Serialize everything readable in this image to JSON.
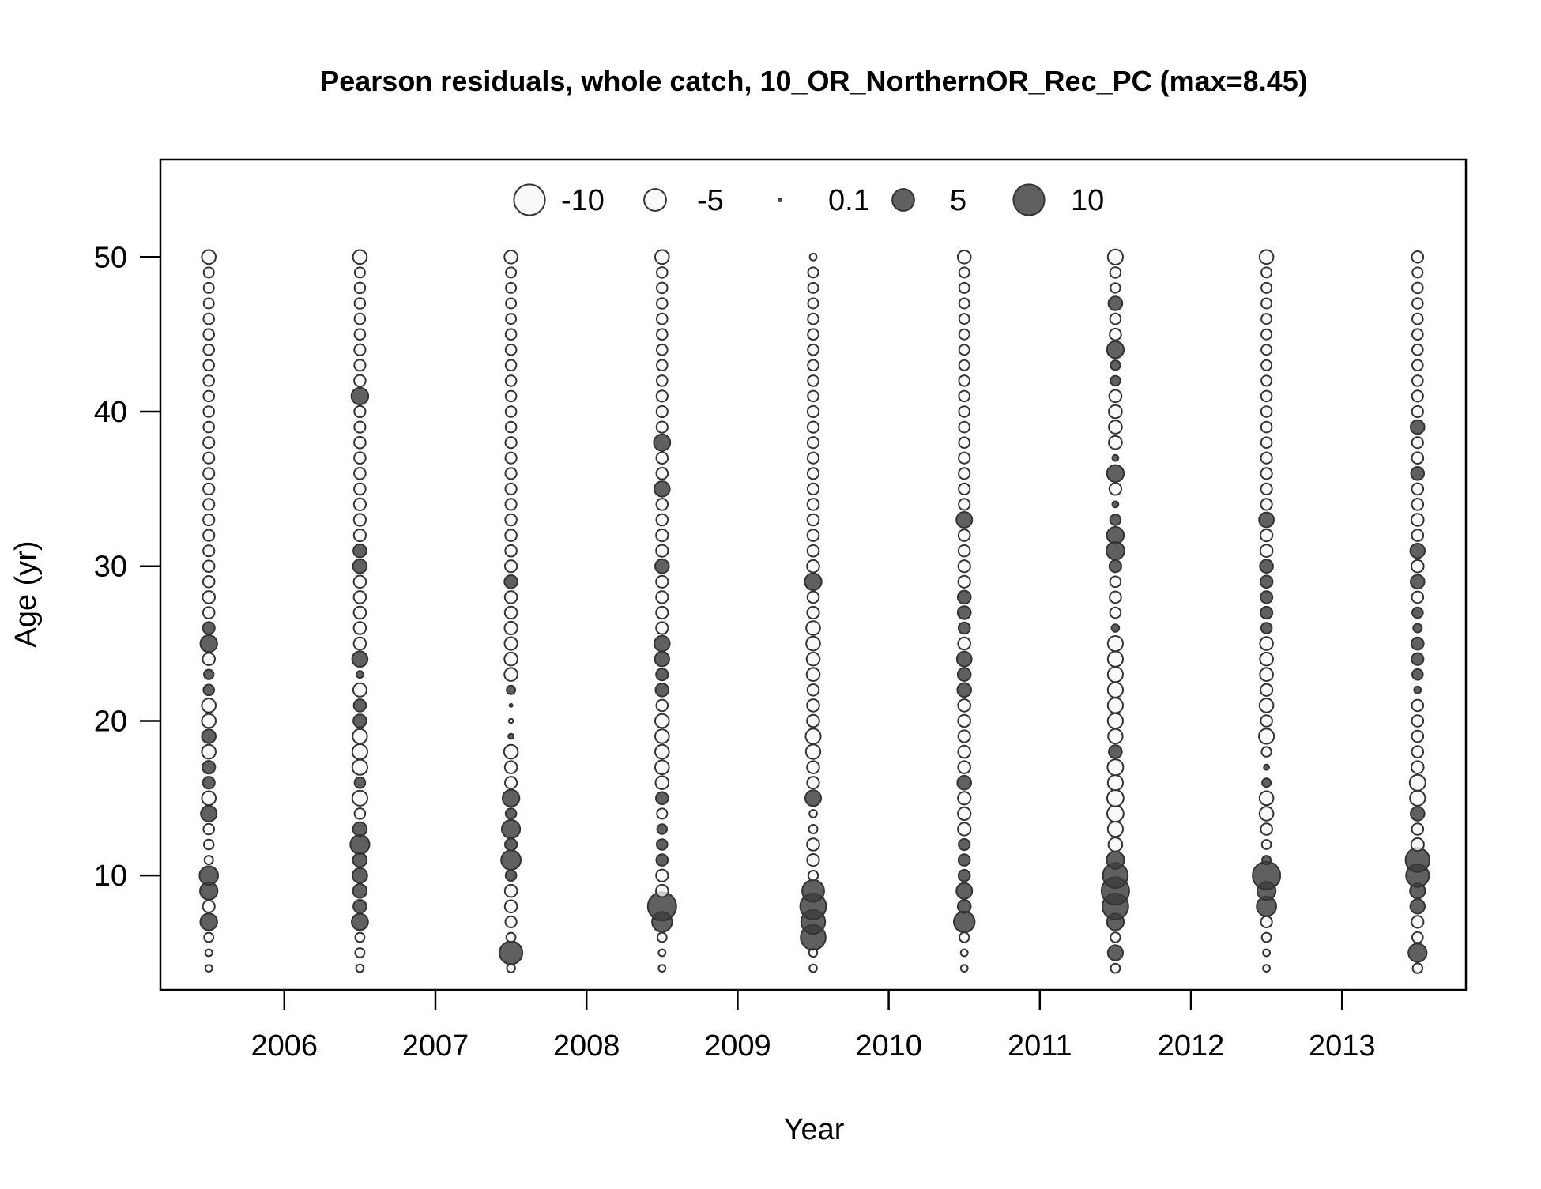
{
  "chart_data": {
    "type": "scatter",
    "subtype": "bubble",
    "title": "Pearson residuals, whole catch, 10_OR_NorthernOR_Rec_PC (max=8.45)",
    "xlabel": "Year",
    "ylabel": "Age (yr)",
    "xlim": [
      2005.18,
      2013.82
    ],
    "ylim": [
      2.6,
      56.3
    ],
    "x_ticks": [
      2006,
      2007,
      2008,
      2009,
      2010,
      2011,
      2012,
      2013
    ],
    "y_ticks": [
      10,
      20,
      30,
      40,
      50
    ],
    "grid": false,
    "legend_position": "top",
    "colors": {
      "positive": "#3d3d3d",
      "negative": "#f7f7f7",
      "outline": "#333333",
      "axis": "#000000"
    },
    "legend": [
      {
        "label": "-10",
        "value": -10
      },
      {
        "label": "-5",
        "value": -5
      },
      {
        "label": "0.1",
        "value": 0.1
      },
      {
        "label": "5",
        "value": 5
      },
      {
        "label": "10",
        "value": 10
      }
    ],
    "series": [
      {
        "year": 2005.5,
        "ages": [
          4,
          5,
          6,
          7,
          8,
          9,
          10,
          11,
          12,
          13,
          14,
          15,
          16,
          17,
          18,
          19,
          20,
          21,
          22,
          23,
          24,
          25,
          26,
          27,
          28,
          29,
          30,
          31,
          32,
          33,
          34,
          35,
          36,
          37,
          38,
          39,
          40,
          41,
          42,
          43,
          44,
          45,
          46,
          47,
          48,
          49,
          50
        ],
        "residuals": [
          -0.5,
          -0.5,
          -0.9,
          3.0,
          -1.5,
          3.2,
          3.6,
          -0.8,
          -1.0,
          -1.2,
          2.6,
          -2.0,
          1.5,
          1.7,
          -2.0,
          2.0,
          -2.0,
          -2.0,
          1.2,
          1.0,
          -1.6,
          3.0,
          1.5,
          -1.4,
          -1.6,
          -1.4,
          -1.4,
          -1.3,
          -1.3,
          -1.3,
          -1.3,
          -1.3,
          -1.3,
          -1.3,
          -1.3,
          -1.2,
          -1.2,
          -1.2,
          -1.2,
          -1.2,
          -1.2,
          -1.2,
          -1.2,
          -1.1,
          -1.1,
          -1.1,
          -2.0
        ]
      },
      {
        "year": 2006.5,
        "ages": [
          4,
          5,
          6,
          7,
          8,
          9,
          10,
          11,
          12,
          13,
          14,
          15,
          16,
          17,
          18,
          19,
          20,
          21,
          22,
          23,
          24,
          25,
          26,
          27,
          28,
          29,
          30,
          31,
          32,
          33,
          34,
          35,
          36,
          37,
          38,
          39,
          40,
          41,
          42,
          43,
          44,
          45,
          46,
          47,
          48,
          49,
          50
        ],
        "residuals": [
          -0.6,
          -0.9,
          -0.9,
          2.8,
          1.8,
          2.0,
          2.3,
          2.0,
          3.8,
          2.0,
          -1.2,
          -2.4,
          1.2,
          -2.4,
          -2.4,
          -2.2,
          1.8,
          1.6,
          -1.9,
          0.5,
          2.5,
          -1.6,
          -1.6,
          -1.6,
          -1.6,
          -1.6,
          2.0,
          1.8,
          -1.5,
          -1.5,
          -1.5,
          -1.4,
          -1.4,
          -1.4,
          -1.4,
          -1.3,
          -1.3,
          3.0,
          -1.4,
          -1.3,
          -1.3,
          -1.2,
          -1.2,
          -1.2,
          -1.2,
          -1.1,
          -2.0
        ]
      },
      {
        "year": 2007.5,
        "ages": [
          4,
          5,
          6,
          7,
          8,
          9,
          10,
          11,
          12,
          13,
          14,
          15,
          16,
          17,
          18,
          19,
          20,
          21,
          22,
          23,
          24,
          25,
          26,
          27,
          28,
          29,
          30,
          31,
          32,
          33,
          34,
          35,
          36,
          37,
          38,
          39,
          40,
          41,
          42,
          43,
          44,
          45,
          46,
          47,
          48,
          49,
          50
        ],
        "residuals": [
          -0.7,
          5.5,
          -0.9,
          -1.3,
          -1.6,
          -1.6,
          1.2,
          4.0,
          1.5,
          3.5,
          1.2,
          3.0,
          -1.5,
          -1.6,
          -2.0,
          0.3,
          -0.2,
          0.1,
          0.8,
          -1.8,
          -1.8,
          -1.7,
          -1.7,
          -1.6,
          -1.6,
          1.8,
          -1.5,
          -1.4,
          -1.4,
          -1.4,
          -1.3,
          -1.3,
          -1.3,
          -1.3,
          -1.3,
          -1.2,
          -1.2,
          -1.2,
          -1.2,
          -1.2,
          -1.2,
          -1.2,
          -1.1,
          -1.1,
          -1.1,
          -1.1,
          -1.8
        ]
      },
      {
        "year": 2008.5,
        "ages": [
          4,
          5,
          6,
          7,
          8,
          9,
          10,
          11,
          12,
          13,
          14,
          15,
          16,
          17,
          18,
          19,
          20,
          21,
          22,
          23,
          24,
          25,
          26,
          27,
          28,
          29,
          30,
          31,
          32,
          33,
          34,
          35,
          36,
          37,
          38,
          39,
          40,
          41,
          42,
          43,
          44,
          45,
          46,
          47,
          48,
          49,
          50
        ],
        "residuals": [
          -0.5,
          -0.5,
          -0.9,
          4.2,
          8.45,
          -1.6,
          -1.5,
          1.4,
          1.2,
          1.0,
          -1.1,
          1.6,
          -1.8,
          -2.0,
          -2.0,
          -2.0,
          -2.0,
          -1.4,
          1.8,
          1.5,
          2.2,
          2.5,
          -1.5,
          -1.5,
          -1.5,
          -1.5,
          2.0,
          -1.5,
          -1.5,
          -1.4,
          -1.4,
          2.5,
          -1.4,
          -1.4,
          2.8,
          -1.3,
          -1.3,
          -1.3,
          -1.2,
          -1.2,
          -1.2,
          -1.2,
          -1.2,
          -1.2,
          -1.2,
          -1.2,
          -2.0
        ]
      },
      {
        "year": 2009.5,
        "ages": [
          4,
          5,
          6,
          7,
          8,
          9,
          10,
          11,
          12,
          13,
          14,
          15,
          16,
          17,
          18,
          19,
          20,
          21,
          22,
          23,
          24,
          25,
          26,
          27,
          28,
          29,
          30,
          31,
          32,
          33,
          34,
          35,
          36,
          37,
          38,
          39,
          40,
          41,
          42,
          43,
          44,
          45,
          46,
          47,
          48,
          49,
          50
        ],
        "residuals": [
          -0.6,
          -0.7,
          6.5,
          6.0,
          7.0,
          5.0,
          -1.0,
          -1.5,
          -1.6,
          -0.8,
          -0.6,
          2.6,
          -1.5,
          -1.6,
          -2.2,
          -2.4,
          -1.6,
          -1.6,
          -1.4,
          -1.8,
          -1.8,
          -2.0,
          -2.0,
          -1.5,
          -1.4,
          3.0,
          -1.6,
          -1.4,
          -1.4,
          -1.4,
          -1.4,
          -1.3,
          -1.3,
          -1.3,
          -1.3,
          -1.3,
          -1.3,
          -1.2,
          -1.2,
          -1.2,
          -1.2,
          -1.2,
          -1.2,
          -1.1,
          -1.1,
          -1.1,
          -0.5
        ]
      },
      {
        "year": 2010.5,
        "ages": [
          4,
          5,
          6,
          7,
          8,
          9,
          10,
          11,
          12,
          13,
          14,
          15,
          16,
          17,
          18,
          19,
          20,
          21,
          22,
          23,
          24,
          25,
          26,
          27,
          28,
          29,
          30,
          31,
          32,
          33,
          34,
          35,
          36,
          37,
          38,
          39,
          40,
          41,
          42,
          43,
          44,
          45,
          46,
          47,
          48,
          49,
          50
        ],
        "residuals": [
          -0.5,
          -0.5,
          -1.0,
          4.5,
          1.8,
          2.6,
          1.4,
          1.4,
          1.3,
          -1.7,
          -1.7,
          -1.7,
          2.0,
          -1.6,
          -1.6,
          -1.5,
          -1.6,
          -1.6,
          2.0,
          1.8,
          2.3,
          -1.6,
          1.4,
          1.8,
          1.8,
          -1.5,
          -1.5,
          -1.4,
          -1.4,
          2.6,
          -1.3,
          -1.3,
          -1.3,
          -1.3,
          -1.2,
          -1.2,
          -1.2,
          -1.2,
          -1.2,
          -1.1,
          -1.1,
          -1.1,
          -1.1,
          -1.1,
          -1.1,
          -1.1,
          -1.8
        ]
      },
      {
        "year": 2011.5,
        "ages": [
          4,
          5,
          6,
          7,
          8,
          9,
          10,
          11,
          12,
          13,
          14,
          15,
          16,
          17,
          18,
          19,
          20,
          21,
          22,
          23,
          24,
          25,
          26,
          27,
          28,
          29,
          30,
          31,
          32,
          33,
          34,
          35,
          36,
          37,
          38,
          39,
          40,
          41,
          42,
          43,
          44,
          45,
          46,
          47,
          48,
          49,
          50
        ],
        "residuals": [
          -0.9,
          2.4,
          -1.0,
          3.0,
          7.0,
          8.0,
          6.5,
          3.2,
          -2.0,
          -2.4,
          -2.8,
          -2.8,
          -2.4,
          -2.6,
          1.8,
          -2.2,
          -2.4,
          -2.4,
          -2.4,
          -2.4,
          -2.4,
          -2.4,
          0.6,
          -1.2,
          -1.4,
          -1.2,
          1.5,
          3.4,
          3.0,
          1.2,
          0.4,
          -1.5,
          3.0,
          0.4,
          -1.8,
          -1.8,
          -1.8,
          -1.6,
          1.0,
          1.0,
          3.0,
          -1.4,
          -1.2,
          2.0,
          -1.0,
          -1.2,
          -2.4
        ]
      },
      {
        "year": 2012.5,
        "ages": [
          4,
          5,
          6,
          7,
          8,
          9,
          10,
          11,
          12,
          13,
          14,
          15,
          16,
          17,
          18,
          19,
          20,
          21,
          22,
          23,
          24,
          25,
          26,
          27,
          28,
          29,
          30,
          31,
          32,
          33,
          34,
          35,
          36,
          37,
          38,
          39,
          40,
          41,
          42,
          43,
          44,
          45,
          46,
          47,
          48,
          49,
          50
        ],
        "residuals": [
          -0.5,
          -0.5,
          -0.9,
          -1.3,
          4.0,
          3.5,
          8.0,
          0.8,
          -0.9,
          -1.4,
          -2.0,
          -2.0,
          0.8,
          0.3,
          -1.0,
          -2.4,
          -1.4,
          -2.0,
          -1.5,
          -1.8,
          -1.8,
          -1.8,
          1.2,
          1.5,
          1.5,
          1.6,
          1.8,
          -1.6,
          -1.5,
          2.3,
          -1.3,
          -1.3,
          -1.3,
          -1.3,
          -1.2,
          -1.2,
          -1.2,
          -1.2,
          -1.1,
          -1.1,
          -1.1,
          -1.1,
          -1.1,
          -1.1,
          -1.1,
          -1.1,
          -2.0
        ]
      },
      {
        "year": 2013.5,
        "ages": [
          4,
          5,
          6,
          7,
          8,
          9,
          10,
          11,
          12,
          13,
          14,
          15,
          16,
          17,
          18,
          19,
          20,
          21,
          22,
          23,
          24,
          25,
          26,
          27,
          28,
          29,
          30,
          31,
          32,
          33,
          34,
          35,
          36,
          37,
          38,
          39,
          40,
          41,
          42,
          43,
          44,
          45,
          46,
          47,
          48,
          49,
          50
        ],
        "residuals": [
          -1.0,
          3.5,
          -1.2,
          -1.5,
          2.2,
          2.4,
          5.5,
          6.0,
          -1.7,
          -1.4,
          2.0,
          -2.4,
          -2.6,
          -1.6,
          -1.4,
          -1.4,
          -1.4,
          -1.4,
          0.5,
          1.2,
          1.5,
          1.6,
          0.8,
          1.2,
          -1.4,
          2.0,
          -1.6,
          2.2,
          -1.4,
          -1.6,
          -1.4,
          -1.4,
          1.8,
          -1.4,
          -1.3,
          2.0,
          -1.3,
          -1.3,
          -1.2,
          -1.2,
          -1.2,
          -1.2,
          -1.2,
          -1.2,
          -1.2,
          -1.1,
          -1.4
        ]
      }
    ]
  }
}
